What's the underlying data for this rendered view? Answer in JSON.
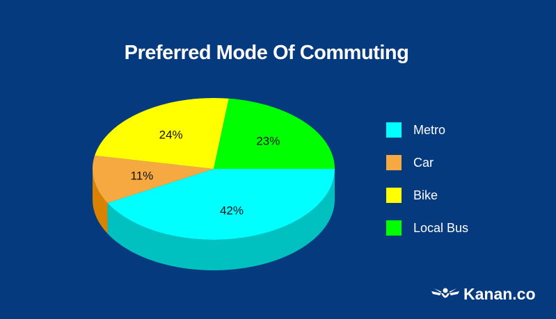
{
  "chart_data": {
    "type": "pie",
    "style": "3d",
    "title": "Preferred Mode Of Commuting",
    "slices": [
      {
        "label": "Metro",
        "value": 42,
        "data_label": "42%",
        "color": "#00ffff",
        "side_color": "#00c0c0"
      },
      {
        "label": "Car",
        "value": 11,
        "data_label": "11%",
        "color": "#f7a941",
        "side_color": "#d98200"
      },
      {
        "label": "Bike",
        "value": 24,
        "data_label": "24%",
        "color": "#ffff00",
        "side_color": "#c8c800"
      },
      {
        "label": "Local Bus",
        "value": 23,
        "data_label": "23%",
        "color": "#00ff00",
        "side_color": "#00c000"
      }
    ],
    "legend_placement": "right",
    "background": "#053a7e"
  },
  "logo": {
    "text": "Kanan.co"
  }
}
